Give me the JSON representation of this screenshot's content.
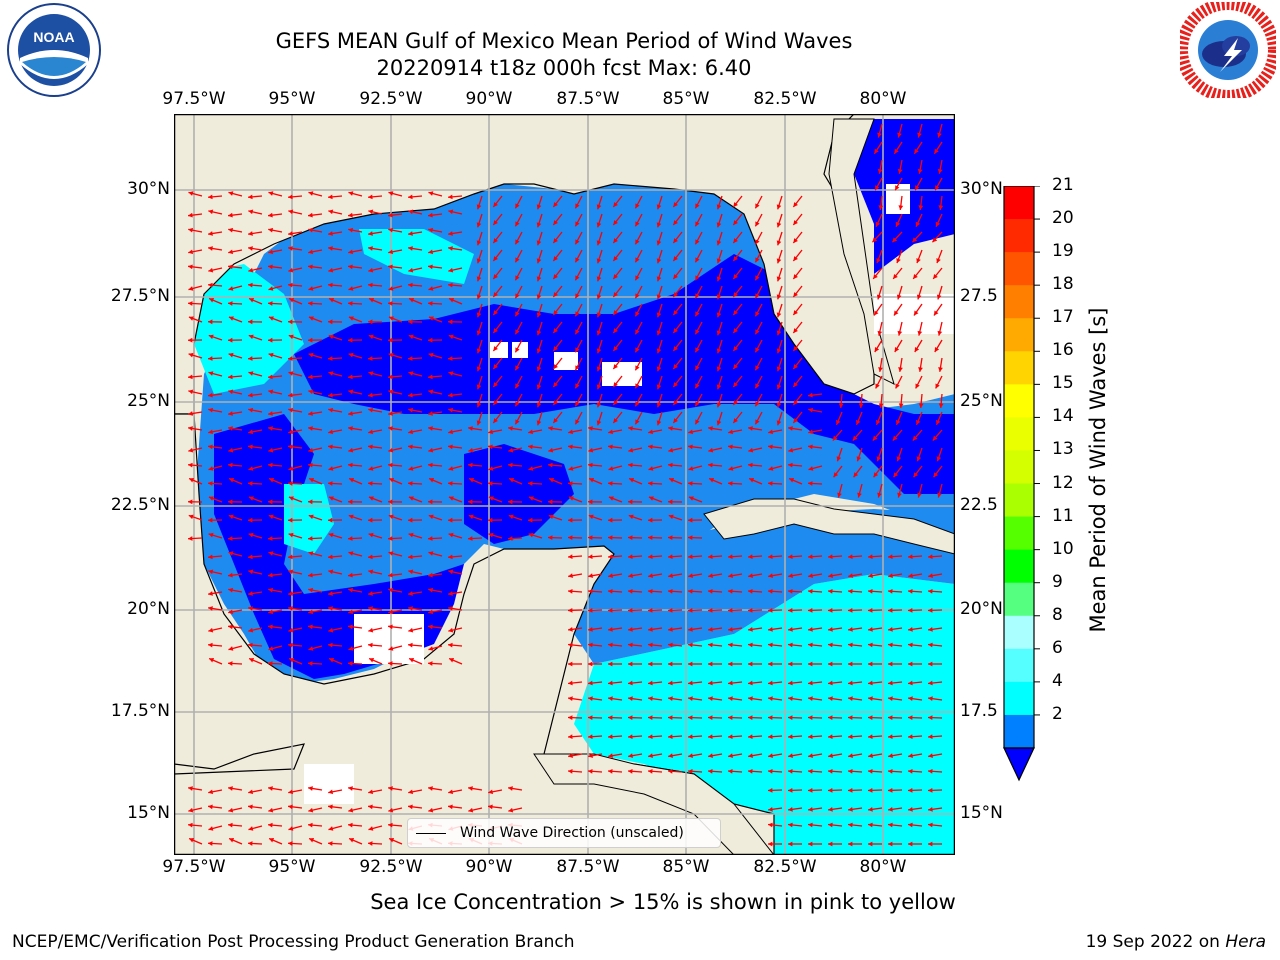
{
  "title": {
    "line1": "GEFS MEAN Gulf of Mexico Mean Period of Wind Waves",
    "line2": "20220914 t18z 000h fcst   Max: 6.40"
  },
  "map": {
    "lon_labels": [
      "97.5°W",
      "95°W",
      "92.5°W",
      "90°W",
      "87.5°W",
      "85°W",
      "82.5°W",
      "80°W"
    ],
    "lat_labels_left": [
      "30°N",
      "27.5°N",
      "25°N",
      "22.5°N",
      "20°N",
      "17.5°N",
      "15°N"
    ],
    "lat_labels_right": [
      "30°N",
      "27.5",
      "25°N",
      "22.5",
      "20°N",
      "17.5",
      "15°N"
    ],
    "land_color": "#efecdc",
    "arrow_color": "#ff0000",
    "legend_label": "Wind Wave Direction (unscaled)"
  },
  "colorbar": {
    "title": "Mean Period of Wind Waves [s]",
    "ticks": [
      "21",
      "20",
      "19",
      "18",
      "17",
      "16",
      "15",
      "14",
      "13",
      "12",
      "11",
      "10",
      "9",
      "8",
      "6",
      "4",
      "2"
    ],
    "colors": [
      "#ff0000",
      "#ff2a00",
      "#ff5500",
      "#ff7f00",
      "#ffaa00",
      "#ffd400",
      "#ffff00",
      "#eaff00",
      "#d4ff00",
      "#aaff00",
      "#55ff00",
      "#00ff00",
      "#55ff7f",
      "#aaffff",
      "#55ffff",
      "#00ffff",
      "#0080ff"
    ],
    "extend_color": "#0000ff"
  },
  "sea_ice_note": "Sea Ice Concentration > 15% is shown in pink to yellow",
  "footer": {
    "left": "NCEP/EMC/Verification Post Processing Product Generation Branch",
    "right_prefix": "19 Sep 2022 on ",
    "right_host": "Hera"
  },
  "logos": {
    "noaa_text": "NOAA",
    "nws_text": "NATIONAL WEATHER SERVICE"
  }
}
